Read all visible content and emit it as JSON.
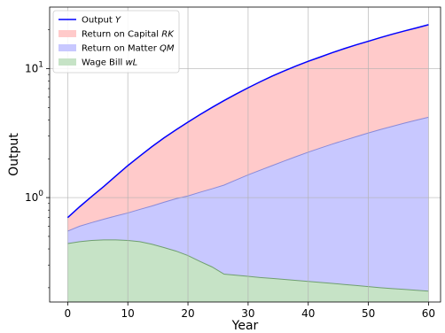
{
  "chart_data": {
    "type": "area",
    "title": "",
    "xlabel": "Year",
    "ylabel": "Output",
    "xlim": [
      -3,
      62
    ],
    "ylim": [
      0.155,
      30
    ],
    "yscale": "log",
    "grid": true,
    "legend_position": "top-left",
    "x_ticks": [
      0,
      10,
      20,
      30,
      40,
      50,
      60
    ],
    "y_ticks": [
      {
        "value": 1,
        "base": "10",
        "exp": "0"
      },
      {
        "value": 10,
        "base": "10",
        "exp": "1"
      }
    ],
    "x": [
      0,
      2,
      4,
      6,
      8,
      10,
      12,
      14,
      16,
      18,
      20,
      22,
      24,
      26,
      28,
      30,
      32,
      34,
      36,
      38,
      40,
      42,
      44,
      46,
      48,
      50,
      52,
      54,
      56,
      58,
      60
    ],
    "series": [
      {
        "name": "Wage Bill",
        "name_italic": "wL",
        "role": "wage",
        "color": "#c6e3c6",
        "edge": "#6f9f6f",
        "values": [
          0.44,
          0.455,
          0.465,
          0.47,
          0.47,
          0.465,
          0.455,
          0.435,
          0.41,
          0.385,
          0.355,
          0.32,
          0.29,
          0.255,
          0.25,
          0.245,
          0.24,
          0.236,
          0.232,
          0.228,
          0.224,
          0.22,
          0.216,
          0.212,
          0.208,
          0.204,
          0.2,
          0.197,
          0.194,
          0.191,
          0.188
        ]
      },
      {
        "name": "Return on Matter",
        "name_italic": "QM",
        "role": "matter_top",
        "color": "#c8c8ff",
        "edge": "#8a8ad8",
        "values": [
          0.55,
          0.6,
          0.64,
          0.68,
          0.72,
          0.76,
          0.81,
          0.86,
          0.92,
          0.98,
          1.03,
          1.1,
          1.17,
          1.25,
          1.37,
          1.5,
          1.63,
          1.77,
          1.92,
          2.08,
          2.25,
          2.42,
          2.6,
          2.78,
          2.97,
          3.17,
          3.37,
          3.57,
          3.78,
          3.99,
          4.2
        ]
      },
      {
        "name": "Return on Capital",
        "name_italic": "RK",
        "role": "capital_top",
        "color": "#ffcaca",
        "edge": "#ff9a9a",
        "values": [
          0.7,
          0.85,
          1.02,
          1.22,
          1.47,
          1.77,
          2.1,
          2.48,
          2.9,
          3.35,
          3.85,
          4.4,
          5.0,
          5.65,
          6.35,
          7.1,
          7.9,
          8.75,
          9.6,
          10.5,
          11.4,
          12.3,
          13.3,
          14.3,
          15.3,
          16.3,
          17.4,
          18.5,
          19.6,
          20.7,
          21.9
        ]
      },
      {
        "name": "Output",
        "name_italic": "Y",
        "role": "output",
        "color": "#0000ff",
        "edge": "#0000ff",
        "values": [
          0.7,
          0.85,
          1.02,
          1.22,
          1.47,
          1.77,
          2.1,
          2.48,
          2.9,
          3.35,
          3.85,
          4.4,
          5.0,
          5.65,
          6.35,
          7.1,
          7.9,
          8.75,
          9.6,
          10.5,
          11.4,
          12.3,
          13.3,
          14.3,
          15.3,
          16.3,
          17.4,
          18.5,
          19.6,
          20.7,
          21.9
        ]
      }
    ],
    "legend": [
      {
        "label": "Output ",
        "italic": "Y",
        "kind": "line",
        "color": "#0000ff"
      },
      {
        "label": "Return on Capital ",
        "italic": "RK",
        "kind": "patch",
        "color": "#ffcaca"
      },
      {
        "label": "Return on Matter ",
        "italic": "QM",
        "kind": "patch",
        "color": "#c8c8ff"
      },
      {
        "label": "Wage Bill ",
        "italic": "wL",
        "kind": "patch",
        "color": "#c6e3c6"
      }
    ]
  }
}
